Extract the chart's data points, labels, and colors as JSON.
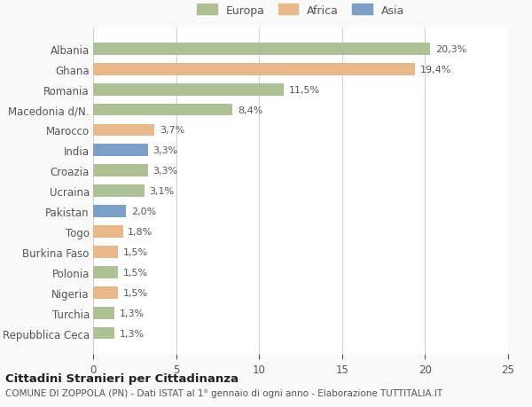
{
  "countries": [
    "Albania",
    "Ghana",
    "Romania",
    "Macedonia d/N.",
    "Marocco",
    "India",
    "Croazia",
    "Ucraina",
    "Pakistan",
    "Togo",
    "Burkina Faso",
    "Polonia",
    "Nigeria",
    "Turchia",
    "Repubblica Ceca"
  ],
  "values": [
    20.3,
    19.4,
    11.5,
    8.4,
    3.7,
    3.3,
    3.3,
    3.1,
    2.0,
    1.8,
    1.5,
    1.5,
    1.5,
    1.3,
    1.3
  ],
  "labels": [
    "20,3%",
    "19,4%",
    "11,5%",
    "8,4%",
    "3,7%",
    "3,3%",
    "3,3%",
    "3,1%",
    "2,0%",
    "1,8%",
    "1,5%",
    "1,5%",
    "1,5%",
    "1,3%",
    "1,3%"
  ],
  "continents": [
    "Europa",
    "Africa",
    "Europa",
    "Europa",
    "Africa",
    "Asia",
    "Europa",
    "Europa",
    "Asia",
    "Africa",
    "Africa",
    "Europa",
    "Africa",
    "Europa",
    "Europa"
  ],
  "colors": {
    "Europa": "#adc195",
    "Africa": "#e8b88a",
    "Asia": "#7b9fc7"
  },
  "legend_order": [
    "Europa",
    "Africa",
    "Asia"
  ],
  "xlim": [
    0,
    25
  ],
  "xticks": [
    0,
    5,
    10,
    15,
    20,
    25
  ],
  "title": "Cittadini Stranieri per Cittadinanza",
  "subtitle": "COMUNE DI ZOPPOLA (PN) - Dati ISTAT al 1° gennaio di ogni anno - Elaborazione TUTTITALIA.IT",
  "bg_color": "#f9f9f9",
  "bar_bg_color": "#ffffff",
  "grid_color": "#d0d0d0",
  "text_color": "#555555",
  "title_color": "#222222"
}
